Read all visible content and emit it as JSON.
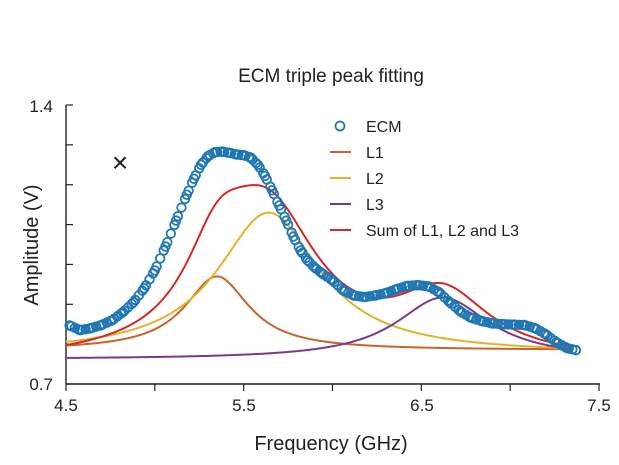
{
  "chart_data": {
    "type": "line",
    "title": "ECM triple peak fitting",
    "xlabel": "Frequency (GHz)",
    "ylabel": "Amplitude (V)",
    "xlim": [
      4.5,
      7.5
    ],
    "ylim": [
      0.7,
      1.4
    ],
    "xticks": [
      "4.5",
      "5.5",
      "6.5",
      "7.5"
    ],
    "yticks": [
      "0.7",
      "1.4"
    ],
    "marker_label": "×",
    "legend_position": "top-right",
    "grid": false,
    "series": [
      {
        "name": "ECM",
        "style": "markers",
        "color": "#1f77b4",
        "x": [
          4.52,
          4.58,
          4.64,
          4.7,
          4.76,
          4.82,
          4.88,
          4.94,
          5.0,
          5.06,
          5.12,
          5.18,
          5.22,
          5.26,
          5.3,
          5.34,
          5.38,
          5.42,
          5.46,
          5.5,
          5.54,
          5.58,
          5.62,
          5.66,
          5.7,
          5.74,
          5.78,
          5.82,
          5.86,
          5.9,
          5.94,
          6.0,
          6.06,
          6.12,
          6.18,
          6.24,
          6.3,
          6.36,
          6.42,
          6.48,
          6.54,
          6.6,
          6.66,
          6.72,
          6.78,
          6.84,
          6.9,
          6.96,
          7.02,
          7.08,
          7.14,
          7.2,
          7.26,
          7.32,
          7.37
        ],
        "y": [
          0.847,
          0.835,
          0.84,
          0.848,
          0.86,
          0.88,
          0.905,
          0.94,
          0.985,
          1.045,
          1.11,
          1.175,
          1.215,
          1.25,
          1.272,
          1.282,
          1.283,
          1.28,
          1.276,
          1.274,
          1.268,
          1.25,
          1.222,
          1.186,
          1.148,
          1.11,
          1.07,
          1.035,
          1.01,
          0.992,
          0.978,
          0.96,
          0.935,
          0.922,
          0.918,
          0.922,
          0.928,
          0.938,
          0.946,
          0.948,
          0.945,
          0.93,
          0.905,
          0.882,
          0.866,
          0.858,
          0.852,
          0.85,
          0.849,
          0.848,
          0.84,
          0.825,
          0.805,
          0.79,
          0.785
        ]
      },
      {
        "name": "L1",
        "style": "line",
        "color": "#c8642a",
        "model": {
          "type": "lorentzian",
          "baseline": 0.785,
          "amplitude": 0.185,
          "center": 5.35,
          "hwhm": 0.22
        },
        "x": [
          4.5,
          4.8,
          5.0,
          5.2,
          5.35,
          5.5,
          5.7,
          6.0,
          6.5,
          7.0,
          7.35
        ],
        "y": [
          0.803,
          0.815,
          0.845,
          0.938,
          0.97,
          0.938,
          0.856,
          0.811,
          0.794,
          0.79,
          0.789
        ]
      },
      {
        "name": "L2",
        "style": "line",
        "color": "#e3b22b",
        "model": {
          "type": "lorentzian",
          "baseline": 0.775,
          "amplitude": 0.355,
          "center": 5.64,
          "hwhm": 0.35
        },
        "x": [
          4.5,
          4.8,
          5.0,
          5.2,
          5.4,
          5.64,
          5.8,
          6.0,
          6.3,
          6.6,
          7.0,
          7.35
        ],
        "y": [
          0.806,
          0.838,
          0.88,
          0.96,
          1.067,
          1.13,
          1.061,
          0.951,
          0.87,
          0.829,
          0.806,
          0.796
        ]
      },
      {
        "name": "L3",
        "style": "line",
        "color": "#7a3a8c",
        "model": {
          "type": "lorentzian",
          "baseline": 0.762,
          "amplitude": 0.155,
          "center": 6.62,
          "hwhm": 0.32
        },
        "x": [
          4.5,
          5.0,
          5.5,
          6.0,
          6.3,
          6.62,
          6.9,
          7.2,
          7.35
        ],
        "y": [
          0.765,
          0.768,
          0.774,
          0.803,
          0.853,
          0.917,
          0.872,
          0.82,
          0.806
        ]
      },
      {
        "name": "Sum of L1, L2 and L3",
        "style": "line",
        "color": "#d62728",
        "model": {
          "type": "sum",
          "of": [
            "L1",
            "L2",
            "L3"
          ],
          "offset": -1.57
        },
        "x": [
          4.5,
          4.8,
          5.0,
          5.2,
          5.35,
          5.5,
          5.64,
          5.8,
          6.0,
          6.2,
          6.4,
          6.6,
          6.8,
          7.0,
          7.2,
          7.35
        ],
        "y": [
          0.804,
          0.852,
          0.924,
          1.099,
          1.235,
          1.264,
          1.225,
          1.09,
          0.966,
          0.928,
          0.945,
          0.955,
          0.915,
          0.866,
          0.832,
          0.82
        ]
      }
    ]
  }
}
